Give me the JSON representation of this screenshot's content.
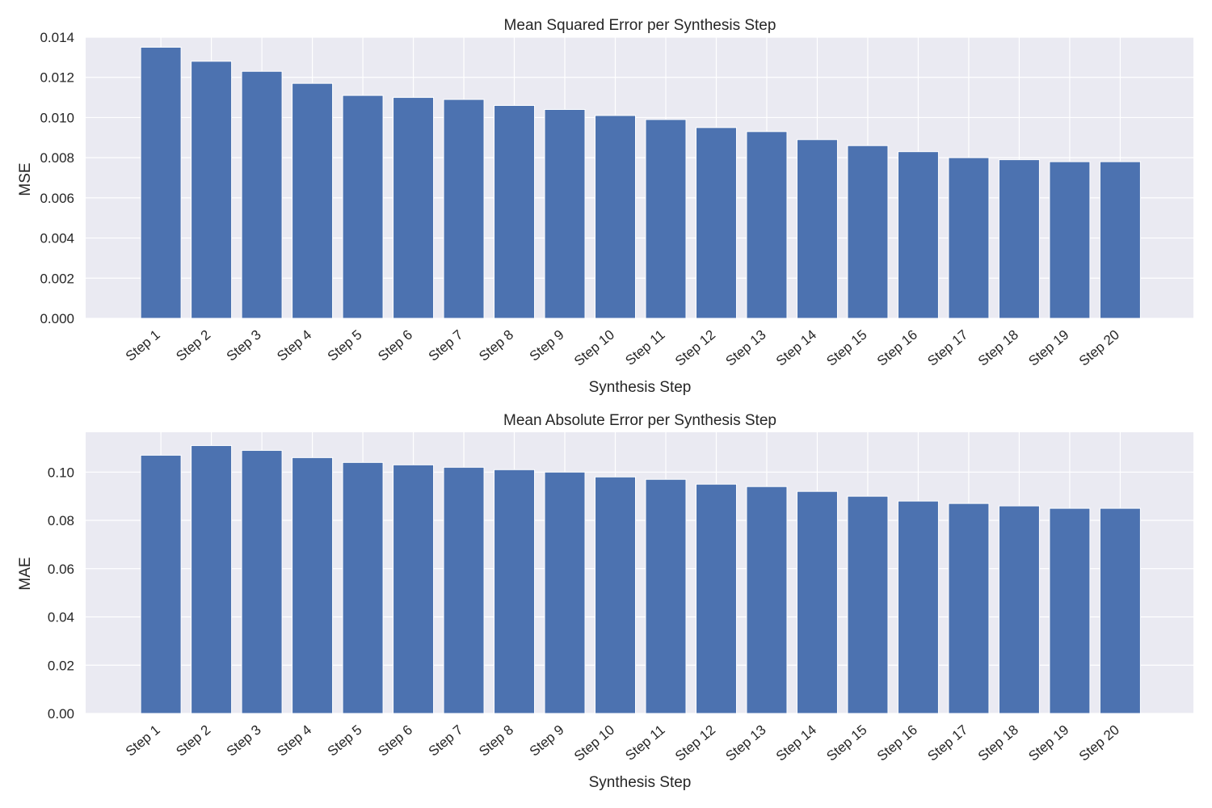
{
  "chart_data": [
    {
      "type": "bar",
      "title": "Mean Squared Error per Synthesis Step",
      "xlabel": "Synthesis Step",
      "ylabel": "MSE",
      "categories": [
        "Step 1",
        "Step 2",
        "Step 3",
        "Step 4",
        "Step 5",
        "Step 6",
        "Step 7",
        "Step 8",
        "Step 9",
        "Step 10",
        "Step 11",
        "Step 12",
        "Step 13",
        "Step 14",
        "Step 15",
        "Step 16",
        "Step 17",
        "Step 18",
        "Step 19",
        "Step 20"
      ],
      "values": [
        0.0135,
        0.0128,
        0.0123,
        0.0117,
        0.0111,
        0.011,
        0.0109,
        0.0106,
        0.0104,
        0.0101,
        0.0099,
        0.0095,
        0.0093,
        0.0089,
        0.0086,
        0.0083,
        0.008,
        0.0079,
        0.0078,
        0.0078
      ],
      "ylim": [
        0,
        0.014
      ],
      "yticks": [
        0.0,
        0.002,
        0.004,
        0.006,
        0.008,
        0.01,
        0.012,
        0.014
      ],
      "ytick_labels": [
        "0.000",
        "0.002",
        "0.004",
        "0.006",
        "0.008",
        "0.010",
        "0.012",
        "0.014"
      ],
      "grid": true,
      "color": "#4c72b0"
    },
    {
      "type": "bar",
      "title": "Mean Absolute Error per Synthesis Step",
      "xlabel": "Synthesis Step",
      "ylabel": "MAE",
      "categories": [
        "Step 1",
        "Step 2",
        "Step 3",
        "Step 4",
        "Step 5",
        "Step 6",
        "Step 7",
        "Step 8",
        "Step 9",
        "Step 10",
        "Step 11",
        "Step 12",
        "Step 13",
        "Step 14",
        "Step 15",
        "Step 16",
        "Step 17",
        "Step 18",
        "Step 19",
        "Step 20"
      ],
      "values": [
        0.107,
        0.111,
        0.109,
        0.106,
        0.104,
        0.103,
        0.102,
        0.101,
        0.1,
        0.098,
        0.097,
        0.095,
        0.094,
        0.092,
        0.09,
        0.088,
        0.087,
        0.086,
        0.085,
        0.085
      ],
      "ylim": [
        0,
        0.1165
      ],
      "yticks": [
        0.0,
        0.02,
        0.04,
        0.06,
        0.08,
        0.1
      ],
      "ytick_labels": [
        "0.00",
        "0.02",
        "0.04",
        "0.06",
        "0.08",
        "0.10"
      ],
      "grid": true,
      "color": "#4c72b0"
    }
  ]
}
